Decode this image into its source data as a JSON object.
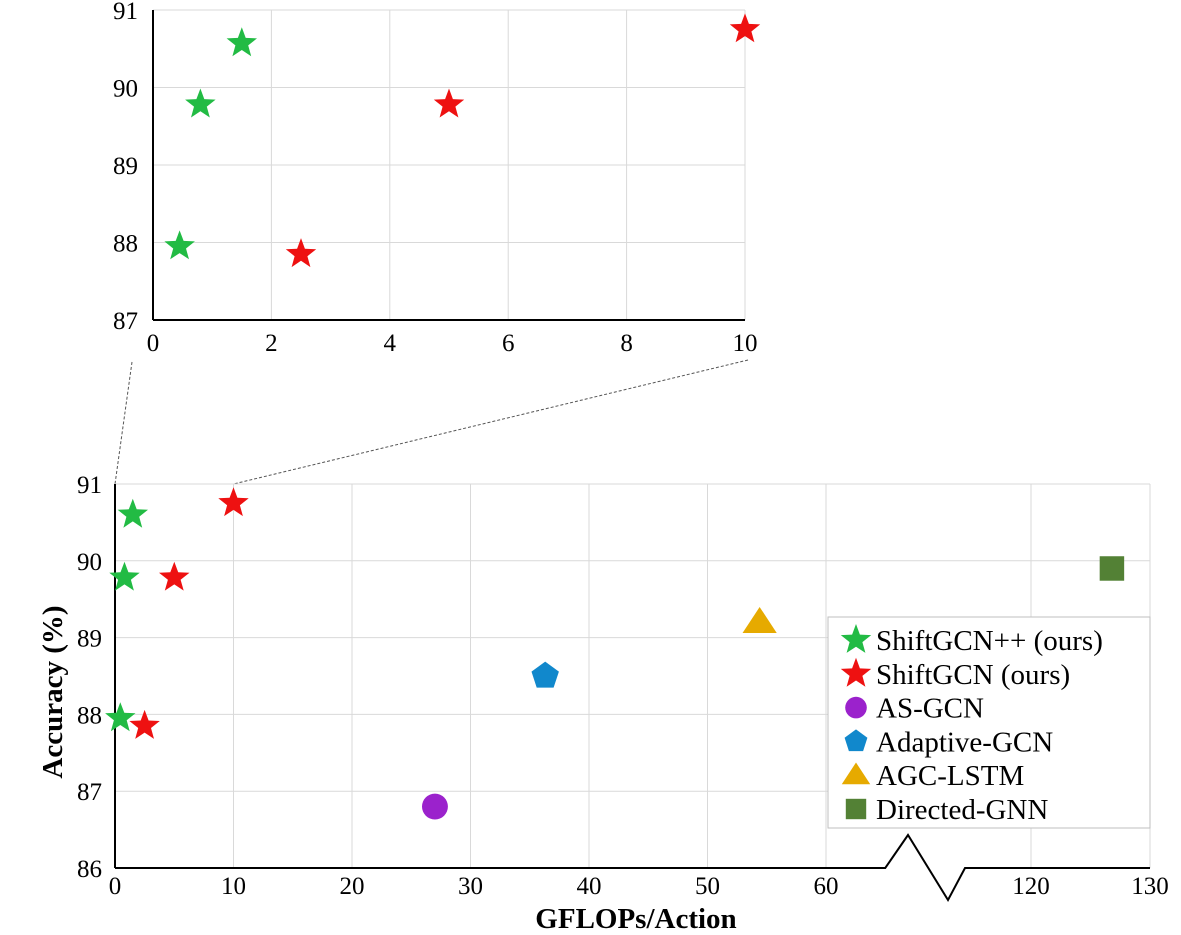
{
  "chart_data": [
    {
      "id": "inset",
      "type": "scatter",
      "title": "",
      "xlabel": "",
      "ylabel": "",
      "xlim": [
        0,
        10
      ],
      "ylim": [
        87,
        91
      ],
      "xticks": [
        "0",
        "2",
        "4",
        "6",
        "8",
        "10"
      ],
      "yticks": [
        "87",
        "88",
        "89",
        "90",
        "91"
      ],
      "grid": true,
      "series": [
        {
          "name": "ShiftGCN++ (ours)",
          "marker": "star",
          "color": "#22bb44",
          "points": [
            [
              0.45,
              87.95
            ],
            [
              0.8,
              89.78
            ],
            [
              1.5,
              90.57
            ]
          ]
        },
        {
          "name": "ShiftGCN (ours)",
          "marker": "star",
          "color": "#ee1111",
          "points": [
            [
              2.5,
              87.85
            ],
            [
              5.0,
              89.78
            ],
            [
              10.0,
              90.75
            ]
          ]
        }
      ]
    },
    {
      "id": "main",
      "type": "scatter",
      "title": "",
      "xlabel": "GFLOPs/Action",
      "ylabel": "Accuracy (%)",
      "xlim": [
        0,
        130
      ],
      "x_axis_break": [
        65,
        115
      ],
      "ylim": [
        86,
        91
      ],
      "xticks": [
        "0",
        "10",
        "20",
        "30",
        "40",
        "50",
        "60",
        "120",
        "130"
      ],
      "yticks": [
        "86",
        "87",
        "88",
        "89",
        "90",
        "91"
      ],
      "grid": true,
      "legend_position": "bottom-right",
      "series": [
        {
          "name": "ShiftGCN++ (ours)",
          "marker": "star",
          "color": "#22bb44",
          "points": [
            [
              0.45,
              87.95
            ],
            [
              0.8,
              89.78
            ],
            [
              1.5,
              90.6
            ]
          ]
        },
        {
          "name": "ShiftGCN (ours)",
          "marker": "star",
          "color": "#ee1111",
          "points": [
            [
              2.5,
              87.85
            ],
            [
              5.0,
              89.78
            ],
            [
              10.0,
              90.75
            ]
          ]
        },
        {
          "name": "AS-GCN",
          "marker": "circle",
          "color": "#9b22cc",
          "points": [
            [
              27.0,
              86.8
            ]
          ]
        },
        {
          "name": "Adaptive-GCN",
          "marker": "pentagon",
          "color": "#1188cc",
          "points": [
            [
              36.3,
              88.5
            ]
          ]
        },
        {
          "name": "AGC-LSTM",
          "marker": "triangle",
          "color": "#e6aa00",
          "points": [
            [
              54.4,
              89.2
            ]
          ]
        },
        {
          "name": "Directed-GNN",
          "marker": "square",
          "color": "#538135",
          "points": [
            [
              126.8,
              89.9
            ]
          ]
        }
      ]
    }
  ]
}
